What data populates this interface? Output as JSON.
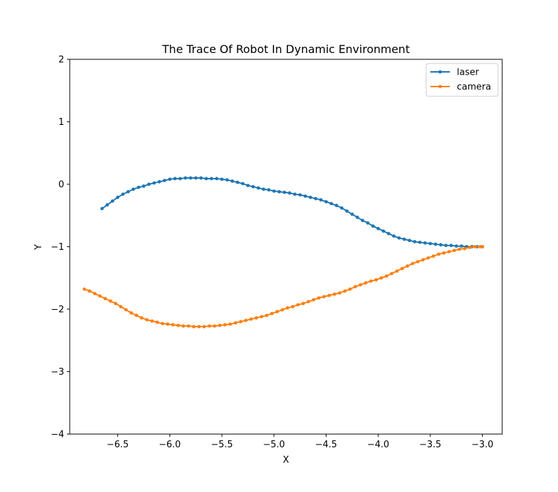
{
  "chart_data": {
    "type": "line",
    "title": "The Trace Of Robot In Dynamic Environment",
    "xlabel": "X",
    "ylabel": "Y",
    "xlim": [
      -6.96,
      -2.81
    ],
    "ylim": [
      -4,
      2
    ],
    "xticks": [
      -6.5,
      -6.0,
      -5.5,
      -5.0,
      -4.5,
      -4.0,
      -3.5,
      -3.0
    ],
    "xtick_labels": [
      "−6.5",
      "−6.0",
      "−5.5",
      "−5.0",
      "−4.5",
      "−4.0",
      "−3.5",
      "−3.0"
    ],
    "yticks": [
      -4,
      -3,
      -2,
      -1,
      0,
      1,
      2
    ],
    "ytick_labels": [
      "−4",
      "−3",
      "−2",
      "−1",
      "0",
      "1",
      "2"
    ],
    "grid": false,
    "legend_position": "top-right",
    "marker": "dot",
    "series": [
      {
        "name": "laser",
        "color": "#1f77b4",
        "points": [
          [
            -6.65,
            -0.39
          ],
          [
            -6.6,
            -0.33
          ],
          [
            -6.55,
            -0.27
          ],
          [
            -6.5,
            -0.21
          ],
          [
            -6.45,
            -0.16
          ],
          [
            -6.4,
            -0.12
          ],
          [
            -6.35,
            -0.08
          ],
          [
            -6.3,
            -0.05
          ],
          [
            -6.25,
            -0.03
          ],
          [
            -6.2,
            0.0
          ],
          [
            -6.15,
            0.02
          ],
          [
            -6.1,
            0.04
          ],
          [
            -6.05,
            0.06
          ],
          [
            -6.0,
            0.08
          ],
          [
            -5.95,
            0.09
          ],
          [
            -5.9,
            0.09
          ],
          [
            -5.85,
            0.1
          ],
          [
            -5.8,
            0.1
          ],
          [
            -5.75,
            0.1
          ],
          [
            -5.7,
            0.1
          ],
          [
            -5.65,
            0.09
          ],
          [
            -5.6,
            0.09
          ],
          [
            -5.55,
            0.09
          ],
          [
            -5.5,
            0.08
          ],
          [
            -5.45,
            0.07
          ],
          [
            -5.4,
            0.05
          ],
          [
            -5.35,
            0.03
          ],
          [
            -5.3,
            0.01
          ],
          [
            -5.25,
            -0.02
          ],
          [
            -5.2,
            -0.04
          ],
          [
            -5.15,
            -0.06
          ],
          [
            -5.1,
            -0.08
          ],
          [
            -5.05,
            -0.09
          ],
          [
            -5.0,
            -0.11
          ],
          [
            -4.95,
            -0.12
          ],
          [
            -4.9,
            -0.13
          ],
          [
            -4.85,
            -0.14
          ],
          [
            -4.8,
            -0.16
          ],
          [
            -4.75,
            -0.17
          ],
          [
            -4.7,
            -0.19
          ],
          [
            -4.65,
            -0.21
          ],
          [
            -4.6,
            -0.23
          ],
          [
            -4.55,
            -0.25
          ],
          [
            -4.5,
            -0.28
          ],
          [
            -4.45,
            -0.31
          ],
          [
            -4.4,
            -0.34
          ],
          [
            -4.35,
            -0.38
          ],
          [
            -4.3,
            -0.43
          ],
          [
            -4.25,
            -0.48
          ],
          [
            -4.2,
            -0.53
          ],
          [
            -4.15,
            -0.58
          ],
          [
            -4.1,
            -0.62
          ],
          [
            -4.05,
            -0.67
          ],
          [
            -4.0,
            -0.71
          ],
          [
            -3.95,
            -0.75
          ],
          [
            -3.9,
            -0.79
          ],
          [
            -3.85,
            -0.83
          ],
          [
            -3.8,
            -0.86
          ],
          [
            -3.75,
            -0.88
          ],
          [
            -3.7,
            -0.9
          ],
          [
            -3.65,
            -0.92
          ],
          [
            -3.6,
            -0.93
          ],
          [
            -3.55,
            -0.94
          ],
          [
            -3.5,
            -0.95
          ],
          [
            -3.45,
            -0.96
          ],
          [
            -3.4,
            -0.97
          ],
          [
            -3.35,
            -0.98
          ],
          [
            -3.3,
            -0.98
          ],
          [
            -3.25,
            -0.99
          ],
          [
            -3.2,
            -0.99
          ],
          [
            -3.15,
            -1.0
          ],
          [
            -3.1,
            -1.0
          ],
          [
            -3.05,
            -1.0
          ],
          [
            -3.0,
            -1.0
          ]
        ]
      },
      {
        "name": "camera",
        "color": "#ff7f0e",
        "points": [
          [
            -6.82,
            -1.68
          ],
          [
            -6.77,
            -1.71
          ],
          [
            -6.72,
            -1.75
          ],
          [
            -6.67,
            -1.79
          ],
          [
            -6.62,
            -1.83
          ],
          [
            -6.57,
            -1.87
          ],
          [
            -6.52,
            -1.91
          ],
          [
            -6.47,
            -1.96
          ],
          [
            -6.42,
            -2.01
          ],
          [
            -6.37,
            -2.06
          ],
          [
            -6.32,
            -2.1
          ],
          [
            -6.27,
            -2.14
          ],
          [
            -6.22,
            -2.17
          ],
          [
            -6.17,
            -2.19
          ],
          [
            -6.12,
            -2.21
          ],
          [
            -6.07,
            -2.23
          ],
          [
            -6.02,
            -2.24
          ],
          [
            -5.97,
            -2.25
          ],
          [
            -5.92,
            -2.26
          ],
          [
            -5.87,
            -2.27
          ],
          [
            -5.82,
            -2.27
          ],
          [
            -5.77,
            -2.28
          ],
          [
            -5.72,
            -2.28
          ],
          [
            -5.67,
            -2.28
          ],
          [
            -5.62,
            -2.27
          ],
          [
            -5.57,
            -2.27
          ],
          [
            -5.52,
            -2.26
          ],
          [
            -5.47,
            -2.25
          ],
          [
            -5.42,
            -2.24
          ],
          [
            -5.37,
            -2.22
          ],
          [
            -5.32,
            -2.2
          ],
          [
            -5.27,
            -2.18
          ],
          [
            -5.22,
            -2.16
          ],
          [
            -5.17,
            -2.14
          ],
          [
            -5.12,
            -2.12
          ],
          [
            -5.07,
            -2.1
          ],
          [
            -5.02,
            -2.07
          ],
          [
            -4.97,
            -2.04
          ],
          [
            -4.92,
            -2.01
          ],
          [
            -4.87,
            -1.98
          ],
          [
            -4.82,
            -1.96
          ],
          [
            -4.77,
            -1.93
          ],
          [
            -4.72,
            -1.91
          ],
          [
            -4.67,
            -1.88
          ],
          [
            -4.62,
            -1.85
          ],
          [
            -4.57,
            -1.82
          ],
          [
            -4.52,
            -1.8
          ],
          [
            -4.47,
            -1.78
          ],
          [
            -4.42,
            -1.76
          ],
          [
            -4.37,
            -1.74
          ],
          [
            -4.32,
            -1.71
          ],
          [
            -4.27,
            -1.68
          ],
          [
            -4.22,
            -1.64
          ],
          [
            -4.17,
            -1.61
          ],
          [
            -4.12,
            -1.58
          ],
          [
            -4.07,
            -1.55
          ],
          [
            -4.02,
            -1.53
          ],
          [
            -3.97,
            -1.5
          ],
          [
            -3.92,
            -1.47
          ],
          [
            -3.87,
            -1.43
          ],
          [
            -3.82,
            -1.39
          ],
          [
            -3.77,
            -1.35
          ],
          [
            -3.72,
            -1.31
          ],
          [
            -3.67,
            -1.27
          ],
          [
            -3.62,
            -1.24
          ],
          [
            -3.57,
            -1.21
          ],
          [
            -3.52,
            -1.18
          ],
          [
            -3.47,
            -1.15
          ],
          [
            -3.42,
            -1.12
          ],
          [
            -3.37,
            -1.1
          ],
          [
            -3.32,
            -1.08
          ],
          [
            -3.27,
            -1.06
          ],
          [
            -3.22,
            -1.04
          ],
          [
            -3.17,
            -1.03
          ],
          [
            -3.12,
            -1.01
          ],
          [
            -3.07,
            -1.0
          ],
          [
            -3.02,
            -1.0
          ],
          [
            -3.0,
            -1.0
          ]
        ]
      }
    ]
  }
}
